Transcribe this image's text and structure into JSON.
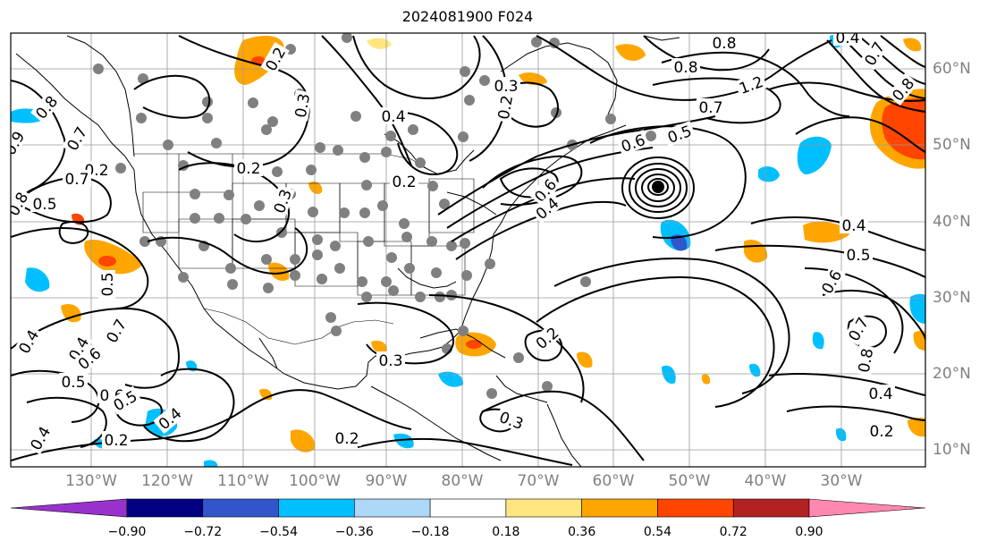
{
  "title": "2024081900 F024",
  "lon_labels": [
    "130°W",
    "120°W",
    "110°W",
    "100°W",
    "90°W",
    "80°W",
    "70°W",
    "60°W",
    "50°W",
    "40°W",
    "30°W"
  ],
  "lat_labels": [
    "60°N",
    "50°N",
    "40°N",
    "30°N",
    "20°N",
    "10°N"
  ],
  "contour_labels": [
    "0.2",
    "0.3",
    "0.2",
    "0.3",
    "0.2",
    "0.7",
    "0.5",
    "0.6",
    "0.8",
    "0.8",
    "1.2",
    "0.7",
    "0.5",
    "0.4",
    "0.6",
    "0.4",
    "0.5",
    "0.6",
    "0.7",
    "0.8",
    "0.4",
    "0.2",
    "0.3",
    "0.2",
    "0.3",
    "0.2",
    "0.4",
    "0.4",
    "0.6",
    "0.5",
    "0.7",
    "0.5",
    "0.4",
    "0.4",
    "0.6",
    "0.5",
    "0.2",
    "0.7",
    "0.8",
    "0.9",
    "0.8",
    "0.4",
    "0.7",
    "0.8",
    "0.4",
    "0.2",
    "0.3",
    "0.2"
  ],
  "colorbar": {
    "tick_labels": [
      "−0.90",
      "−0.72",
      "−0.54",
      "−0.36",
      "−0.18",
      "0.18",
      "0.36",
      "0.54",
      "0.72",
      "0.90"
    ],
    "bins": [
      {
        "from": null,
        "to": -0.9,
        "color": "#9932cc"
      },
      {
        "from": -0.9,
        "to": -0.72,
        "color": "#000080"
      },
      {
        "from": -0.72,
        "to": -0.54,
        "color": "#3355cc"
      },
      {
        "from": -0.54,
        "to": -0.36,
        "color": "#00bfff"
      },
      {
        "from": -0.36,
        "to": -0.18,
        "color": "#add8f8"
      },
      {
        "from": -0.18,
        "to": 0.18,
        "color": "#ffffff"
      },
      {
        "from": 0.18,
        "to": 0.36,
        "color": "#ffe680"
      },
      {
        "from": 0.36,
        "to": 0.54,
        "color": "#ffa500"
      },
      {
        "from": 0.54,
        "to": 0.72,
        "color": "#ff4500"
      },
      {
        "from": 0.72,
        "to": 0.9,
        "color": "#b22222"
      },
      {
        "from": 0.9,
        "to": null,
        "color": "#ff88b0"
      }
    ]
  },
  "colors": {
    "contour": "#000000",
    "grid": "#999999",
    "station": "#808080",
    "axis_label": "#808080"
  }
}
